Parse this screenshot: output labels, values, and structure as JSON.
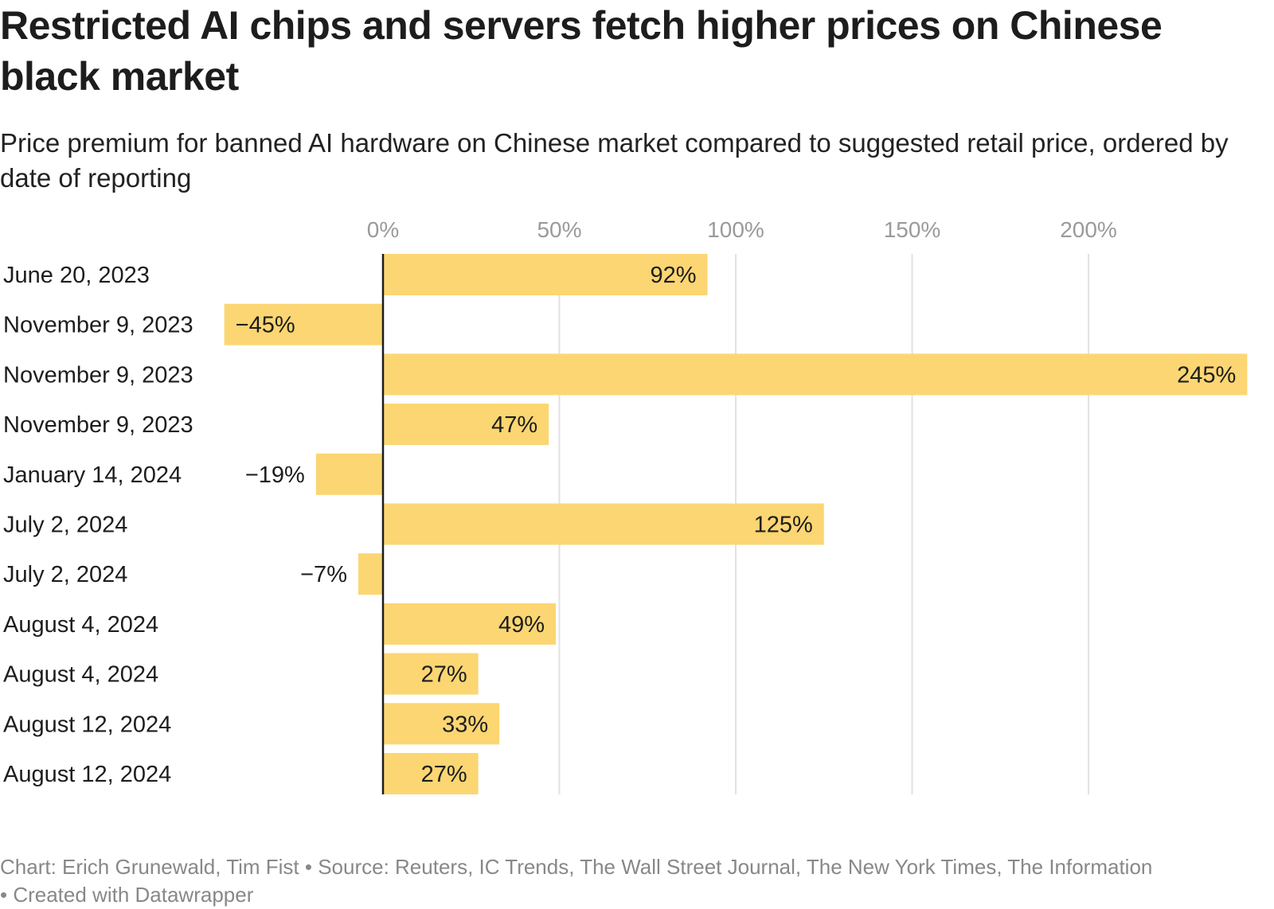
{
  "title": "Restricted AI chips and servers fetch higher prices on Chinese black market",
  "subtitle": "Price premium for banned AI hardware on Chinese market compared to suggested retail price, ordered by date of reporting",
  "footer": "Chart: Erich Grunewald, Tim Fist • Source: Reuters, IC Trends, The Wall Street Journal, The New York Times, The Information • Created with Datawrapper",
  "colors": {
    "bar": "#fbd672",
    "grid": "#e2e2e2",
    "axis": "#1d1d1d",
    "tick": "#9a9a9a"
  },
  "chart_data": {
    "type": "bar",
    "orientation": "horizontal",
    "title": "Restricted AI chips and servers fetch higher prices on Chinese black market",
    "xlabel": "",
    "ylabel": "",
    "xlim": [
      -45,
      245
    ],
    "xticks": [
      0,
      50,
      100,
      150,
      200
    ],
    "xtick_labels": [
      "0%",
      "50%",
      "100%",
      "150%",
      "200%"
    ],
    "grid": true,
    "categories": [
      "June 20, 2023",
      "November 9, 2023",
      "November 9, 2023",
      "November 9, 2023",
      "January 14, 2024",
      "July 2, 2024",
      "July 2, 2024",
      "August 4, 2024",
      "August 4, 2024",
      "August 12, 2024",
      "August 12, 2024"
    ],
    "values": [
      92,
      -45,
      245,
      47,
      -19,
      125,
      -7,
      49,
      27,
      33,
      27
    ],
    "value_labels": [
      "92%",
      "−45%",
      "245%",
      "47%",
      "−19%",
      "125%",
      "−7%",
      "49%",
      "27%",
      "33%",
      "27%"
    ]
  }
}
